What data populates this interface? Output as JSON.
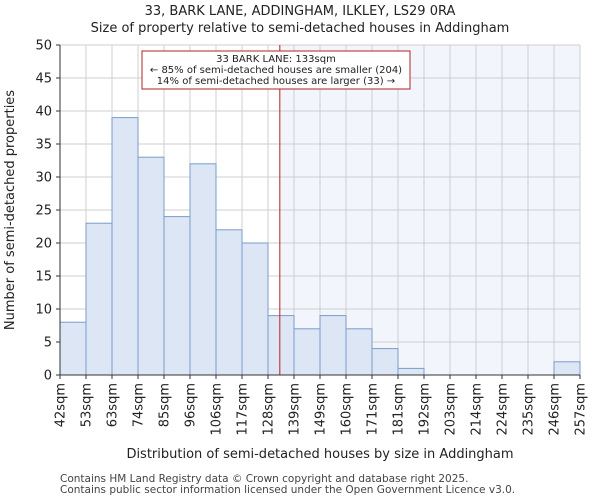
{
  "header": {
    "title": "33, BARK LANE, ADDINGHAM, ILKLEY, LS29 0RA",
    "subtitle": "Size of property relative to semi-detached houses in Addingham"
  },
  "footer": {
    "line1": "Contains HM Land Registry data © Crown copyright and database right 2025.",
    "line2": "Contains public sector information licensed under the Open Government Licence v3.0."
  },
  "chart_data": {
    "type": "bar",
    "title": "33, BARK LANE, ADDINGHAM, ILKLEY, LS29 0RA",
    "subtitle": "Size of property relative to semi-detached houses in Addingham",
    "xlabel": "Distribution of semi-detached houses by size in Addingham",
    "ylabel": "Number of semi-detached properties",
    "ylim": [
      0,
      50
    ],
    "yticks": [
      0,
      5,
      10,
      15,
      20,
      25,
      30,
      35,
      40,
      45,
      50
    ],
    "bin_edges": [
      42,
      53,
      63,
      74,
      85,
      96,
      106,
      117,
      128,
      139,
      149,
      160,
      171,
      181,
      192,
      203,
      214,
      224,
      235,
      246,
      257
    ],
    "tick_labels": [
      "42sqm",
      "53sqm",
      "63sqm",
      "74sqm",
      "85sqm",
      "96sqm",
      "106sqm",
      "117sqm",
      "128sqm",
      "139sqm",
      "149sqm",
      "160sqm",
      "171sqm",
      "181sqm",
      "192sqm",
      "203sqm",
      "214sqm",
      "224sqm",
      "235sqm",
      "246sqm",
      "257sqm"
    ],
    "values": [
      8,
      23,
      39,
      33,
      24,
      32,
      22,
      20,
      9,
      7,
      9,
      7,
      4,
      1,
      0,
      0,
      0,
      0,
      0,
      2
    ],
    "property_size": 133,
    "annotation": {
      "line1": "33 BARK LANE: 133sqm",
      "line2": "← 85% of semi-detached houses are smaller (204)",
      "line3": "14% of semi-detached houses are larger (33) →"
    },
    "colors": {
      "bar_fill": "#dce6f5",
      "bar_edge": "#7a9cc9",
      "marker_line": "#b22222",
      "highlight_region": "#f3f5fc",
      "grid": "#cfcfcf"
    },
    "grid": true
  }
}
